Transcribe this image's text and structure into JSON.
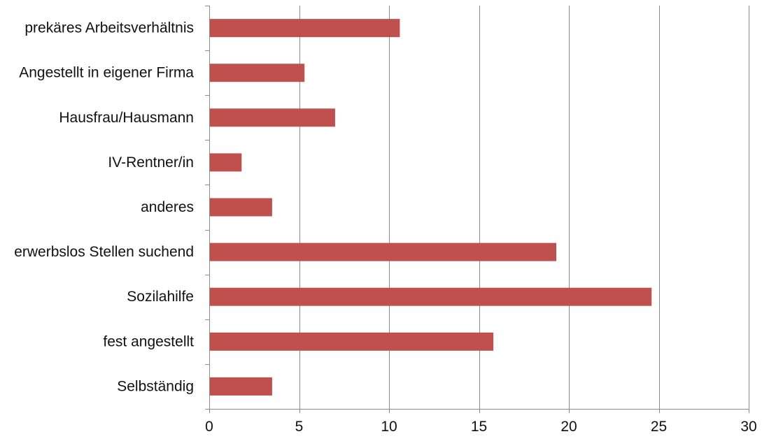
{
  "chart_data": {
    "type": "bar",
    "orientation": "horizontal",
    "title": "",
    "xlabel": "",
    "ylabel": "",
    "categories": [
      "prekäres Arbeitsverhältnis",
      "Angestellt in eigener Firma",
      "Hausfrau/Hausmann",
      "IV-Rentner/in",
      "anderes",
      "erwerbslos Stellen suchend",
      "Sozilahilfe",
      "fest angestellt",
      "Selbständig"
    ],
    "values": [
      10.6,
      5.3,
      7.0,
      1.8,
      3.5,
      19.3,
      24.6,
      15.8,
      3.5
    ],
    "xlim": [
      0,
      30
    ],
    "xticks": [
      0,
      5,
      10,
      15,
      20,
      25,
      30
    ],
    "grid": "vertical",
    "legend": "none",
    "bar_color": "#c0504d"
  }
}
